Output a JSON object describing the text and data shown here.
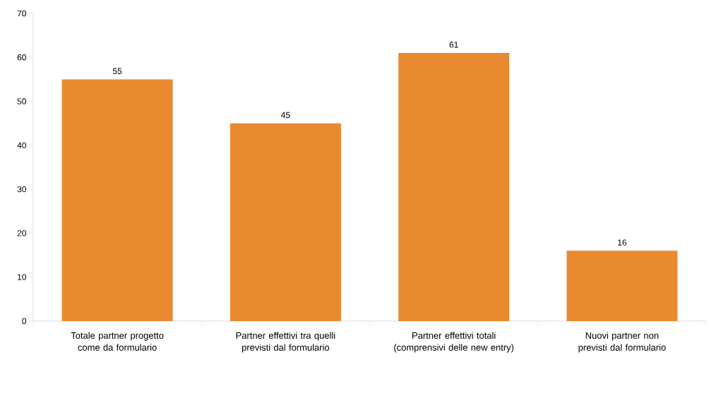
{
  "chart_data": {
    "type": "bar",
    "categories": [
      "Totale partner progetto come da formulario",
      "Partner effettivi tra quelli previsti dal formulario",
      "Partner effettivi totali (comprensivi delle new entry)",
      "Nuovi partner non previsti dal formulario"
    ],
    "values": [
      55,
      45,
      61,
      16
    ],
    "color": "#ea8a30",
    "ylim": [
      0,
      70
    ],
    "yticks": [
      0,
      10,
      20,
      30,
      40,
      50,
      60,
      70
    ],
    "data_labels": true,
    "grid": false
  }
}
